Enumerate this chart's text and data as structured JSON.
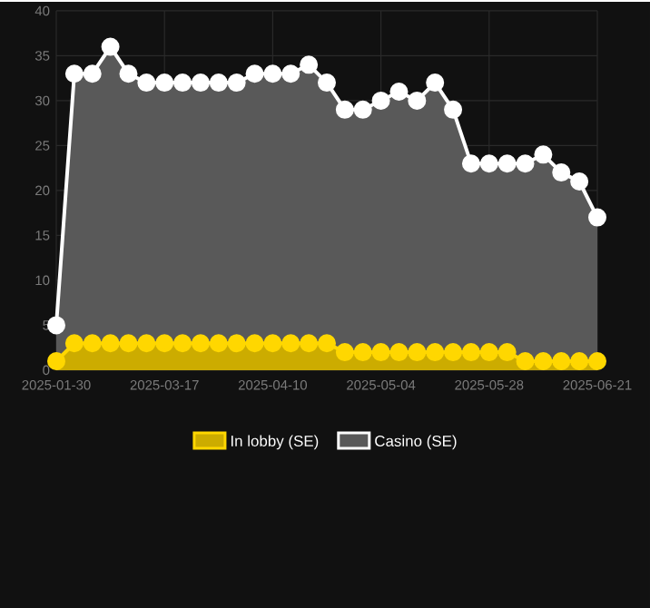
{
  "chart_data": {
    "type": "area",
    "categories": [
      "2025-01-30",
      null,
      null,
      null,
      null,
      null,
      "2025-03-17",
      null,
      null,
      null,
      null,
      null,
      "2025-04-10",
      null,
      null,
      null,
      null,
      null,
      "2025-05-04",
      null,
      null,
      null,
      null,
      null,
      "2025-05-28",
      null,
      null,
      null,
      null,
      null,
      "2025-06-21"
    ],
    "series": [
      {
        "name": "In lobby (SE)",
        "color": "#ffd700",
        "values": [
          1,
          3,
          3,
          3,
          3,
          3,
          3,
          3,
          3,
          3,
          3,
          3,
          3,
          3,
          3,
          3,
          2,
          2,
          2,
          2,
          2,
          2,
          2,
          2,
          2,
          2,
          1,
          1,
          1,
          1,
          1
        ]
      },
      {
        "name": "Casino (SE)",
        "color": "#ffffff",
        "values": [
          5,
          33,
          33,
          36,
          33,
          32,
          32,
          32,
          32,
          32,
          32,
          33,
          33,
          33,
          34,
          32,
          29,
          29,
          30,
          31,
          30,
          32,
          29,
          23,
          23,
          23,
          23,
          24,
          22,
          21,
          17
        ]
      }
    ],
    "ylim": [
      0,
      40
    ],
    "yticks": [
      0,
      5,
      10,
      15,
      20,
      25,
      30,
      35,
      40
    ],
    "grid": true,
    "legend": "bottom",
    "marker": "circle",
    "line_style": "solid"
  }
}
